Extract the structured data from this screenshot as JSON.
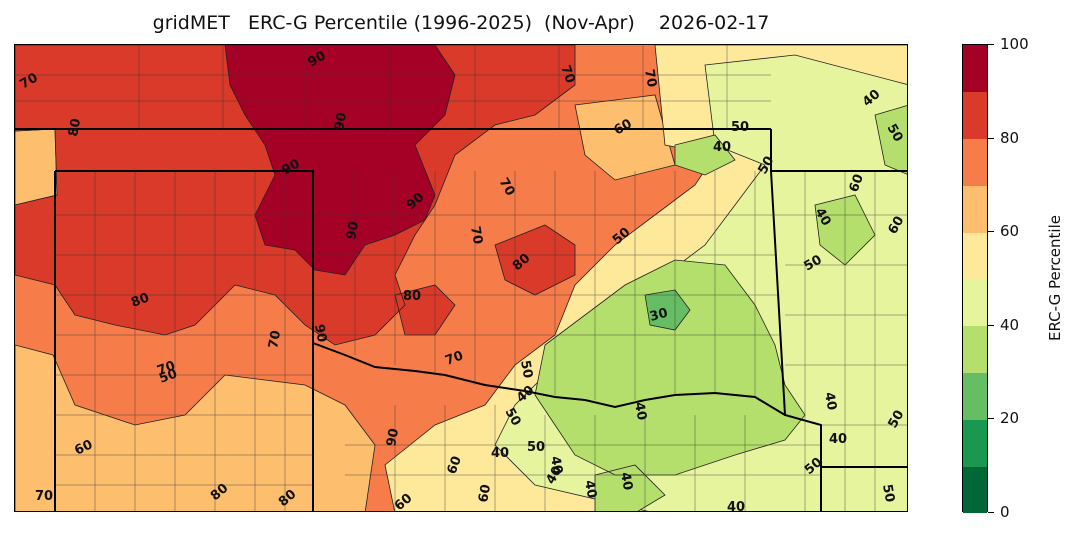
{
  "title": "gridMET   ERC-G Percentile (1996-2025)  (Nov-Apr)    2026-02-17",
  "colorbar": {
    "label": "ERC-G Percentile",
    "ticks": [
      "0",
      "20",
      "40",
      "60",
      "80",
      "100"
    ],
    "range": [
      0,
      100
    ],
    "levels": [
      0,
      10,
      20,
      30,
      40,
      50,
      60,
      70,
      80,
      90,
      100
    ],
    "colors": [
      "#006837",
      "#1a9850",
      "#66bd63",
      "#b5df6c",
      "#e6f49e",
      "#fee99a",
      "#fdbe6e",
      "#f67c4a",
      "#da3a2a",
      "#a50026"
    ]
  },
  "contour_labels": [
    "70",
    "80",
    "90",
    "90",
    "90",
    "90",
    "90",
    "70",
    "60",
    "50",
    "40",
    "70",
    "50",
    "40",
    "60",
    "50",
    "40",
    "60",
    "50",
    "80",
    "70",
    "70",
    "80",
    "70",
    "70",
    "60",
    "50",
    "40",
    "50",
    "40",
    "50",
    "40",
    "40",
    "40",
    "40",
    "30",
    "40",
    "50",
    "60",
    "60",
    "40",
    "50",
    "40",
    "40",
    "50",
    "50",
    "70",
    "60",
    "80",
    "80",
    "60",
    "60",
    "70",
    "80",
    "80",
    "70",
    "90",
    "90",
    "50"
  ]
}
